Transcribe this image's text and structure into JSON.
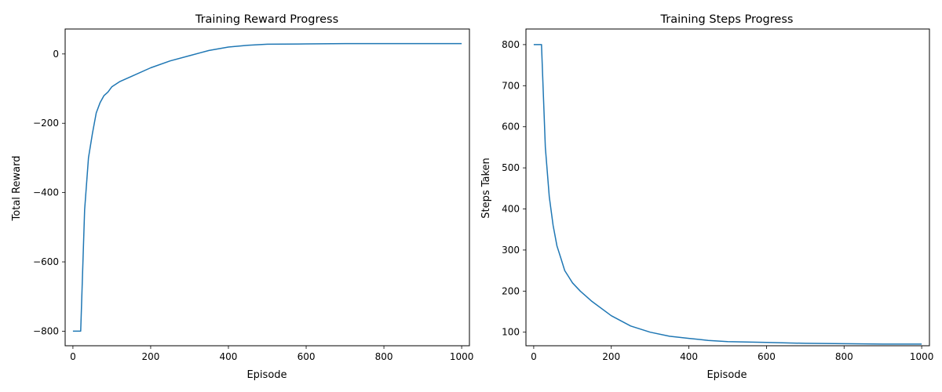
{
  "chart_data": [
    {
      "type": "line",
      "title": "Training Reward Progress",
      "xlabel": "Episode",
      "ylabel": "Total Reward",
      "xlim": [
        -20,
        1020
      ],
      "ylim": [
        -842,
        72
      ],
      "xticks": [
        0,
        200,
        400,
        600,
        800,
        1000
      ],
      "xtick_labels": [
        "0",
        "200",
        "400",
        "600",
        "800",
        "1000"
      ],
      "yticks": [
        -800,
        -600,
        -400,
        -200,
        0
      ],
      "ytick_labels": [
        "−800",
        "−600",
        "−400",
        "−200",
        "0"
      ],
      "grid": false,
      "color": "#1f77b4",
      "series": [
        {
          "x": [
            0,
            20,
            30,
            40,
            50,
            60,
            70,
            80,
            90,
            100,
            120,
            150,
            200,
            250,
            300,
            350,
            400,
            450,
            500,
            600,
            700,
            800,
            900,
            1000
          ],
          "values": [
            -800,
            -800,
            -450,
            -300,
            -230,
            -170,
            -140,
            -120,
            -110,
            -95,
            -80,
            -65,
            -40,
            -20,
            -5,
            10,
            20,
            25,
            28,
            29,
            30,
            30,
            30,
            30
          ]
        }
      ]
    },
    {
      "type": "line",
      "title": "Training Steps Progress",
      "xlabel": "Episode",
      "ylabel": "Steps Taken",
      "xlim": [
        -20,
        1020
      ],
      "ylim": [
        67,
        838
      ],
      "xticks": [
        0,
        200,
        400,
        600,
        800,
        1000
      ],
      "xtick_labels": [
        "0",
        "200",
        "400",
        "600",
        "800",
        "1000"
      ],
      "yticks": [
        100,
        200,
        300,
        400,
        500,
        600,
        700,
        800
      ],
      "ytick_labels": [
        "100",
        "200",
        "300",
        "400",
        "500",
        "600",
        "700",
        "800"
      ],
      "grid": false,
      "color": "#1f77b4",
      "series": [
        {
          "x": [
            0,
            20,
            30,
            40,
            50,
            60,
            70,
            80,
            90,
            100,
            120,
            150,
            200,
            250,
            300,
            350,
            400,
            450,
            500,
            600,
            700,
            800,
            900,
            1000
          ],
          "values": [
            800,
            800,
            550,
            430,
            360,
            310,
            280,
            250,
            235,
            220,
            200,
            175,
            140,
            115,
            100,
            90,
            85,
            80,
            77,
            75,
            73,
            72,
            71,
            71
          ]
        }
      ]
    }
  ]
}
